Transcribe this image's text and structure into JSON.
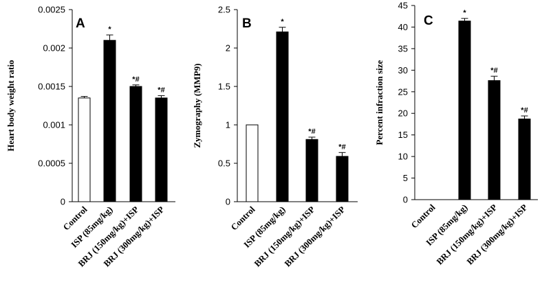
{
  "chart_data": [
    {
      "type": "bar",
      "panel": "A",
      "ylabel": "Heart body weight ratio",
      "ylim": [
        0,
        0.0025
      ],
      "yticks": [
        "0",
        "0.0005",
        "0.001",
        "0.0015",
        "0.002",
        "0.0025"
      ],
      "categories": [
        "Control",
        "ISP (85mg/kg)",
        "BRJ (150mg/kg)+ISP",
        "BRJ (300mg/kg)+ISP"
      ],
      "values": [
        0.00135,
        0.0021,
        0.0015,
        0.00135
      ],
      "errors": [
        2e-05,
        7e-05,
        2e-05,
        3e-05
      ],
      "fills": [
        "#ffffff",
        "#000000",
        "#000000",
        "#000000"
      ],
      "significance": [
        "",
        "*",
        "*#",
        "*#"
      ]
    },
    {
      "type": "bar",
      "panel": "B",
      "ylabel": "Zymography  (MMP9)",
      "ylim": [
        0,
        2.5
      ],
      "yticks": [
        "0",
        "0.5",
        "1",
        "1.5",
        "2",
        "2.5"
      ],
      "categories": [
        "Control",
        "ISP (85mg/kg)",
        "BRJ (150mg/kg)+ISP",
        "BRJ (300mg/kg)+ISP"
      ],
      "values": [
        1.0,
        2.21,
        0.81,
        0.59
      ],
      "errors": [
        0,
        0.06,
        0.03,
        0.05
      ],
      "fills": [
        "#ffffff",
        "#000000",
        "#000000",
        "#000000"
      ],
      "significance": [
        "",
        "*",
        "*#",
        "*#"
      ]
    },
    {
      "type": "bar",
      "panel": "C",
      "ylabel": "Percent   infraction size",
      "ylim": [
        0,
        45
      ],
      "yticks": [
        "0",
        "5",
        "10",
        "15",
        "20",
        "25",
        "30",
        "35",
        "40",
        "45"
      ],
      "categories": [
        "Control",
        "ISP (85mg/kg)",
        "BRJ (150mg/kg)+ISP",
        "BRJ (300mg/kg)+ISP"
      ],
      "values": [
        0,
        41.4,
        27.6,
        18.7
      ],
      "errors": [
        0,
        0.6,
        1.0,
        0.7
      ],
      "fills": [
        "#ffffff",
        "#000000",
        "#000000",
        "#000000"
      ],
      "significance": [
        "",
        "*",
        "*#",
        "*#"
      ]
    }
  ]
}
